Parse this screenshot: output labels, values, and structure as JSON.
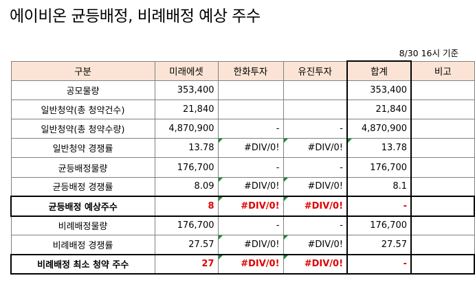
{
  "title": "에이비온 균등배정, 비례배정 예상 주수",
  "as_of": "8/30 16시 기준",
  "headers": [
    "구분",
    "미래에셋",
    "한화투자",
    "유진투자",
    "합계",
    "비고"
  ],
  "rows": [
    {
      "label": "공모물량",
      "cells": [
        "353,400",
        "",
        "",
        "353,400",
        ""
      ]
    },
    {
      "label": "일반청약(총 청약건수)",
      "cells": [
        "21,840",
        "",
        "",
        "21,840",
        ""
      ]
    },
    {
      "label": "일반청약(총 청약수량)",
      "cells": [
        "4,870,900",
        "-",
        "-",
        "4,870,900",
        ""
      ]
    },
    {
      "label": "일반청약 경쟁률",
      "cells": [
        "13.78",
        "#DIV/0!",
        "#DIV/0!",
        "13.78",
        ""
      ]
    },
    {
      "label": "균등배정물량",
      "cells": [
        "176,700",
        "-",
        "-",
        "176,700",
        ""
      ]
    },
    {
      "label": "균등배정 경쟁률",
      "cells": [
        "8.09",
        "#DIV/0!",
        "#DIV/0!",
        "8.1",
        ""
      ]
    },
    {
      "label": "균등배정 예상주수",
      "cells": [
        "8",
        "#DIV/0!",
        "#DIV/0!",
        "-",
        ""
      ]
    },
    {
      "label": "비례배정물량",
      "cells": [
        "176,700",
        "-",
        "-",
        "176,700",
        ""
      ]
    },
    {
      "label": "비례배정 경쟁률",
      "cells": [
        "27.57",
        "#DIV/0!",
        "#DIV/0!",
        "27.57",
        ""
      ]
    },
    {
      "label": "비례배정 최소 청약 주수",
      "cells": [
        "27",
        "#DIV/0!",
        "#DIV/0!",
        "-",
        ""
      ]
    }
  ],
  "colors": {
    "header_bg": "#fbe4d5",
    "highlight_text": "#e00000",
    "error_indicator": "#1f8b3a"
  }
}
